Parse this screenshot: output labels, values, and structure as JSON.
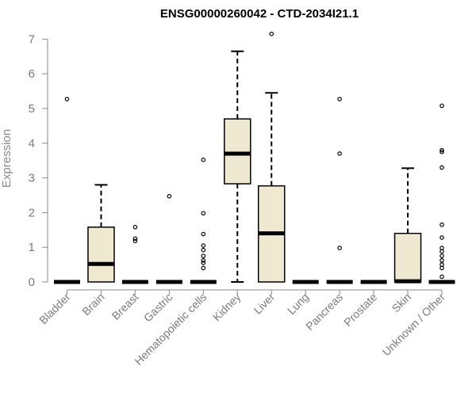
{
  "chart_data": {
    "type": "boxplot",
    "title": "ENSG00000260042 - CTD-2034I21.1",
    "xlabel": "",
    "ylabel": "Expression",
    "ylim": [
      0,
      7
    ],
    "yticks": [
      0,
      1,
      2,
      3,
      4,
      5,
      6,
      7
    ],
    "grid": false,
    "colors": {
      "box_fill": "#efe9d2",
      "stroke": "#000000",
      "axis": "#8a8a8a"
    },
    "categories": [
      "Bladder",
      "Brain",
      "Breast",
      "Gastric",
      "Hematopoietic cells",
      "Kidney",
      "Liver",
      "Lung",
      "Pancreas",
      "Prostate",
      "Skin",
      "Unknown / Other"
    ],
    "boxes": [
      {
        "category": "Bladder",
        "whisker_low": 0,
        "q1": 0,
        "median": 0,
        "q3": 0,
        "whisker_high": 0,
        "outliers": [
          5.27
        ]
      },
      {
        "category": "Brain",
        "whisker_low": 0,
        "q1": 0,
        "median": 0.52,
        "q3": 1.58,
        "whisker_high": 2.8,
        "outliers": []
      },
      {
        "category": "Breast",
        "whisker_low": 0,
        "q1": 0,
        "median": 0,
        "q3": 0,
        "whisker_high": 0,
        "outliers": [
          1.58,
          1.25,
          1.18
        ]
      },
      {
        "category": "Gastric",
        "whisker_low": 0,
        "q1": 0,
        "median": 0,
        "q3": 0,
        "whisker_high": 0,
        "outliers": [
          2.47
        ]
      },
      {
        "category": "Hematopoietic cells",
        "whisker_low": 0,
        "q1": 0,
        "median": 0,
        "q3": 0,
        "whisker_high": 0,
        "outliers": [
          3.52,
          1.98,
          1.38,
          1.05,
          0.92,
          0.75,
          0.62,
          0.55,
          0.4
        ]
      },
      {
        "category": "Kidney",
        "whisker_low": 0,
        "q1": 2.83,
        "median": 3.7,
        "q3": 4.7,
        "whisker_high": 6.65,
        "outliers": []
      },
      {
        "category": "Liver",
        "whisker_low": 0,
        "q1": 0,
        "median": 1.4,
        "q3": 2.77,
        "whisker_high": 5.45,
        "outliers": [
          7.15
        ]
      },
      {
        "category": "Lung",
        "whisker_low": 0,
        "q1": 0,
        "median": 0,
        "q3": 0,
        "whisker_high": 0,
        "outliers": []
      },
      {
        "category": "Pancreas",
        "whisker_low": 0,
        "q1": 0,
        "median": 0,
        "q3": 0,
        "whisker_high": 0,
        "outliers": [
          5.27,
          3.7,
          0.98
        ]
      },
      {
        "category": "Prostate",
        "whisker_low": 0,
        "q1": 0,
        "median": 0,
        "q3": 0,
        "whisker_high": 0,
        "outliers": []
      },
      {
        "category": "Skin",
        "whisker_low": 0,
        "q1": 0,
        "median": 0.02,
        "q3": 1.4,
        "whisker_high": 3.28,
        "outliers": []
      },
      {
        "category": "Unknown / Other",
        "whisker_low": 0,
        "q1": 0,
        "median": 0,
        "q3": 0,
        "whisker_high": 0,
        "outliers": [
          5.08,
          3.8,
          3.75,
          3.3,
          1.65,
          1.28,
          0.98,
          0.88,
          0.75,
          0.62,
          0.5,
          0.4,
          0.15
        ]
      }
    ]
  }
}
